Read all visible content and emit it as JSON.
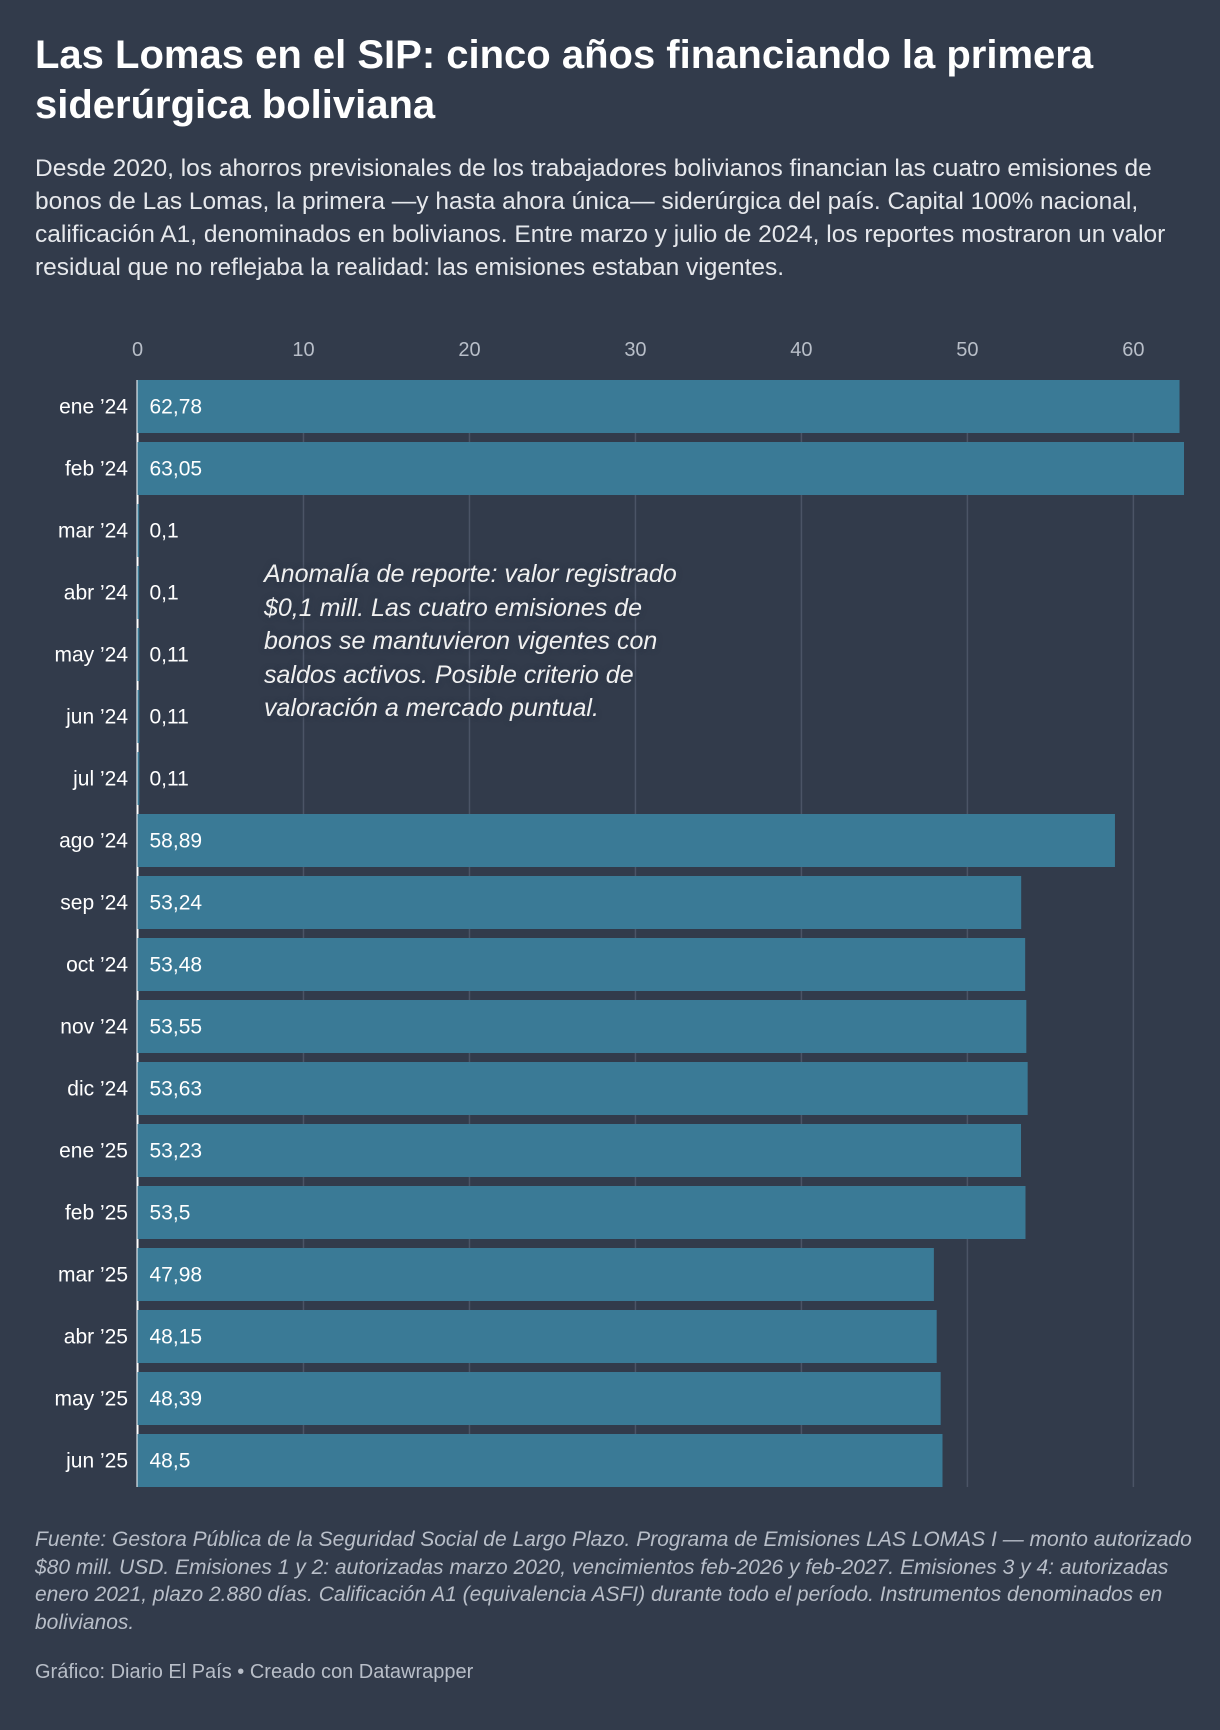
{
  "title": "Las Lomas en el SIP: cinco años financiando la primera siderúrgica boliviana",
  "description": "Desde 2020, los ahorros previsionales de los trabajadores bolivianos financian las cuatro emisiones de bonos de Las Lomas, la primera —y hasta ahora única— siderúrgica del país. Capital 100% nacional, calificación A1, denominados en bolivianos. Entre marzo y julio de 2024, los reportes mostraron un valor residual que no reflejaba la realidad: las emisiones estaban vigentes.",
  "annotation": "Anomalía de reporte: valor registrado $0,1 mill. Las cuatro emisiones de bonos se mantuvieron vigentes con saldos activos. Posible criterio de valoración a mercado puntual.",
  "source": "Fuente: Gestora Pública de la Seguridad Social de Largo Plazo. Programa de Emisiones LAS LOMAS I — monto autorizado $80 mill. USD. Emisiones 1 y 2: autorizadas marzo 2020, vencimientos feb-2026 y feb-2027. Emisiones 3 y 4: autorizadas enero 2021, plazo 2.880 días. Calificación A1 (equivalencia ASFI) durante todo el período. Instrumentos denominados en bolivianos.",
  "credit": "Gráfico: Diario El País • Creado con Datawrapper",
  "colors": {
    "background": "#323b4b",
    "bar": "#3a7a96",
    "grid": "#4b5466",
    "axis_text": "#b8bec8"
  },
  "chart_data": {
    "type": "bar",
    "orientation": "horizontal",
    "categories": [
      "ene ’24",
      "feb ’24",
      "mar ’24",
      "abr ’24",
      "may ’24",
      "jun ’24",
      "jul ’24",
      "ago ’24",
      "sep ’24",
      "oct ’24",
      "nov ’24",
      "dic ’24",
      "ene ’25",
      "feb ’25",
      "mar ’25",
      "abr ’25",
      "may ’25",
      "jun ’25"
    ],
    "values": [
      62.78,
      63.05,
      0.1,
      0.1,
      0.11,
      0.11,
      0.11,
      58.89,
      53.24,
      53.48,
      53.55,
      53.63,
      53.23,
      53.5,
      47.98,
      48.15,
      48.39,
      48.5
    ],
    "value_labels": [
      "62,78",
      "63,05",
      "0,1",
      "0,1",
      "0,11",
      "0,11",
      "0,11",
      "58,89",
      "53,24",
      "53,48",
      "53,55",
      "53,63",
      "53,23",
      "53,5",
      "47,98",
      "48,15",
      "48,39",
      "48,5"
    ],
    "x_ticks": [
      0,
      10,
      20,
      30,
      40,
      50,
      60
    ],
    "xlim": [
      0,
      63.05
    ],
    "grid": true,
    "axis_position": "top"
  }
}
